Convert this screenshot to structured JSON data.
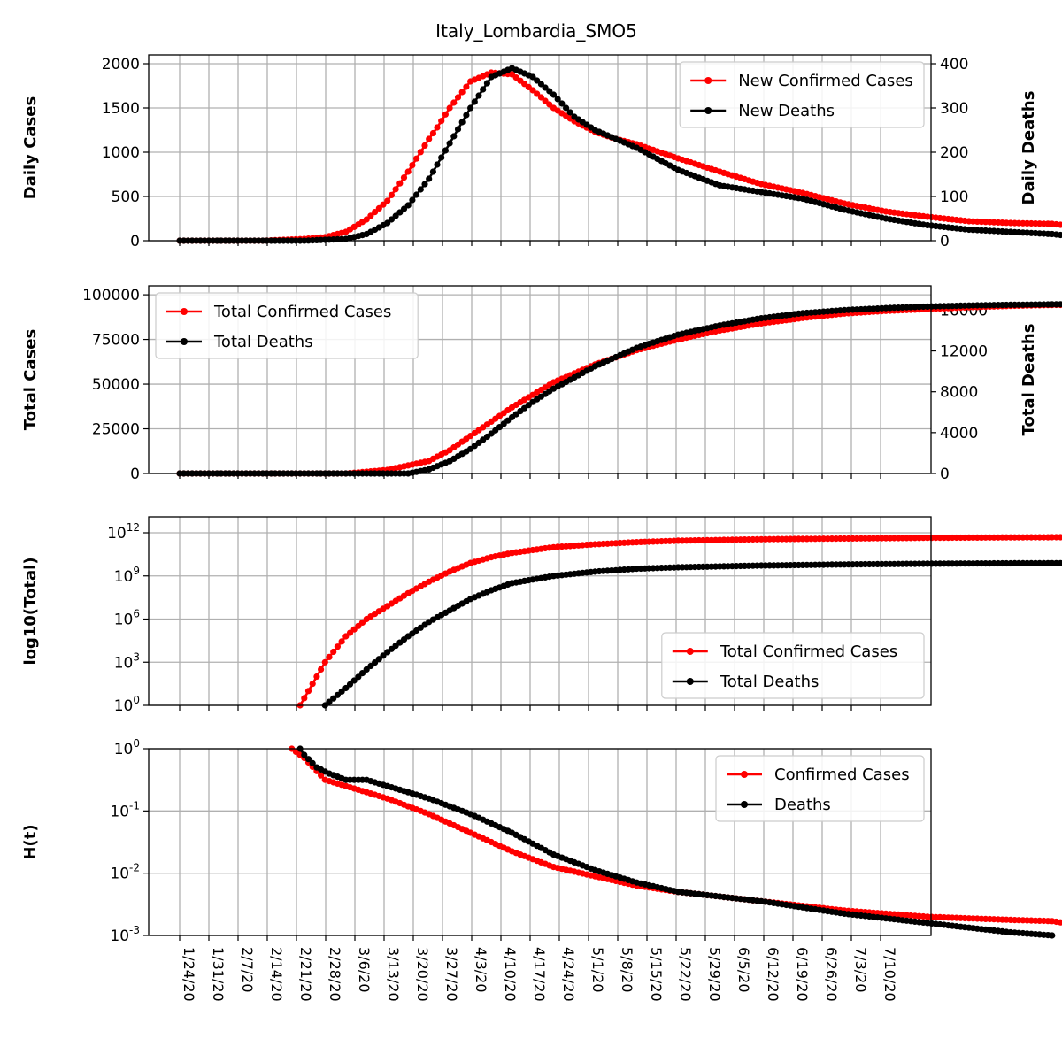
{
  "title": "Italy_Lombardia_SMO5",
  "dates": [
    "1/24/20",
    "1/31/20",
    "2/7/20",
    "2/14/20",
    "2/21/20",
    "2/28/20",
    "3/6/20",
    "3/13/20",
    "3/20/20",
    "3/27/20",
    "4/3/20",
    "4/10/20",
    "4/17/20",
    "4/24/20",
    "5/1/20",
    "5/8/20",
    "5/15/20",
    "5/22/20",
    "5/29/20",
    "6/5/20",
    "6/12/20",
    "6/19/20",
    "6/26/20",
    "7/3/20",
    "7/10/20"
  ],
  "colors": {
    "cases": "#ff0000",
    "deaths": "#000000",
    "grid": "#b0b0b0"
  },
  "chart_data": [
    {
      "type": "line",
      "ylabel": "Daily Cases",
      "ylabel_right": "Daily Deaths",
      "yticks": [
        "0",
        "500",
        "1000",
        "1500",
        "2000"
      ],
      "yticks_right": [
        "0",
        "100",
        "200",
        "300",
        "400"
      ],
      "ylim": [
        0,
        2100
      ],
      "ylim_right": [
        0,
        420
      ],
      "legend": "top-right",
      "grid": true,
      "series": [
        {
          "name": "New Confirmed Cases",
          "axis": "left",
          "color": "#ff0000",
          "days": [
            0,
            20,
            25,
            30,
            35,
            40,
            45,
            50,
            55,
            60,
            62,
            65,
            70,
            75,
            80,
            85,
            90,
            95,
            100,
            105,
            110,
            120,
            130,
            140,
            150,
            160,
            170,
            180,
            190,
            200,
            210,
            220,
            230,
            240
          ],
          "values": [
            0,
            0,
            10,
            20,
            40,
            100,
            240,
            450,
            780,
            1150,
            1280,
            1500,
            1800,
            1900,
            1880,
            1700,
            1500,
            1350,
            1230,
            1150,
            1090,
            930,
            780,
            640,
            540,
            420,
            330,
            270,
            220,
            200,
            190,
            140,
            100,
            90
          ]
        },
        {
          "name": "New Deaths",
          "axis": "right",
          "color": "#000000",
          "days": [
            0,
            30,
            40,
            45,
            50,
            55,
            60,
            65,
            70,
            75,
            80,
            85,
            90,
            95,
            100,
            105,
            110,
            120,
            130,
            140,
            150,
            160,
            170,
            180,
            190,
            200,
            210,
            220,
            230,
            240
          ],
          "values": [
            0,
            0,
            4,
            15,
            40,
            80,
            140,
            220,
            300,
            370,
            390,
            370,
            330,
            280,
            250,
            230,
            210,
            160,
            125,
            110,
            95,
            70,
            50,
            35,
            25,
            20,
            15,
            5,
            5,
            5
          ]
        }
      ]
    },
    {
      "type": "line",
      "ylabel": "Total Cases",
      "ylabel_right": "Total Deaths",
      "yticks": [
        "0",
        "25000",
        "50000",
        "75000",
        "100000"
      ],
      "yticks_right": [
        "0",
        "4000",
        "8000",
        "12000",
        "16000"
      ],
      "ylim": [
        0,
        105000
      ],
      "ylim_right": [
        0,
        18375
      ],
      "legend": "top-left",
      "grid": true,
      "series": [
        {
          "name": "Total Confirmed Cases",
          "axis": "left",
          "color": "#ff0000",
          "days": [
            0,
            40,
            50,
            60,
            65,
            70,
            75,
            80,
            85,
            90,
            100,
            110,
            120,
            130,
            140,
            150,
            160,
            170,
            180,
            190,
            200,
            210,
            220,
            230,
            240
          ],
          "values": [
            0,
            0,
            2000,
            7000,
            13000,
            21000,
            29000,
            37000,
            44000,
            51000,
            61000,
            69000,
            75000,
            80000,
            84000,
            87000,
            89500,
            91000,
            92000,
            93000,
            93800,
            94300,
            94600,
            94800,
            95000
          ]
        },
        {
          "name": "Total Deaths",
          "axis": "right",
          "color": "#000000",
          "days": [
            0,
            55,
            60,
            65,
            70,
            75,
            80,
            85,
            90,
            100,
            110,
            120,
            130,
            140,
            150,
            160,
            170,
            180,
            190,
            200,
            210,
            220,
            230,
            240
          ],
          "values": [
            0,
            0,
            400,
            1200,
            2400,
            3900,
            5500,
            7000,
            8300,
            10500,
            12300,
            13600,
            14500,
            15200,
            15700,
            16000,
            16200,
            16350,
            16450,
            16520,
            16560,
            16600,
            16620,
            16640
          ]
        }
      ]
    },
    {
      "type": "line",
      "ylabel": "log10(Total)",
      "yscale": "log",
      "yticks": [
        "10^0",
        "10^3",
        "10^6",
        "10^9",
        "10^12"
      ],
      "ylim": [
        0,
        12.0
      ],
      "legend": "bottom-right",
      "grid": true,
      "series": [
        {
          "name": "Total Confirmed Cases",
          "color": "#ff0000",
          "days": [
            29,
            35,
            40,
            45,
            50,
            55,
            60,
            65,
            70,
            75,
            80,
            90,
            100,
            110,
            120,
            140,
            160,
            180,
            200,
            220,
            240
          ],
          "values_log10": [
            0,
            3,
            4.8,
            6,
            6.9,
            7.8,
            8.6,
            9.3,
            9.9,
            10.3,
            10.6,
            11.0,
            11.2,
            11.35,
            11.45,
            11.55,
            11.6,
            11.65,
            11.68,
            11.7,
            11.72
          ]
        },
        {
          "name": "Total Deaths",
          "color": "#000000",
          "days": [
            35,
            40,
            45,
            50,
            55,
            60,
            65,
            70,
            75,
            80,
            90,
            100,
            110,
            120,
            140,
            160,
            180,
            200,
            220,
            240
          ],
          "values_log10": [
            0,
            1.2,
            2.5,
            3.7,
            4.8,
            5.8,
            6.6,
            7.4,
            8.0,
            8.5,
            9.0,
            9.3,
            9.5,
            9.6,
            9.72,
            9.8,
            9.85,
            9.88,
            9.9,
            9.92
          ]
        }
      ]
    },
    {
      "type": "line",
      "ylabel": "H(t)",
      "yscale": "log",
      "yticks": [
        "10^-3",
        "10^-2",
        "10^-1",
        "10^0"
      ],
      "ylim": [
        -3,
        0
      ],
      "legend": "top-right",
      "grid": true,
      "series": [
        {
          "name": "Confirmed Cases",
          "color": "#ff0000",
          "days": [
            27,
            30,
            35,
            40,
            50,
            60,
            70,
            80,
            90,
            100,
            110,
            120,
            140,
            160,
            180,
            200,
            210,
            215,
            220,
            225,
            230,
            236
          ],
          "values_log10": [
            0,
            -0.15,
            -0.5,
            -0.6,
            -0.8,
            -1.05,
            -1.35,
            -1.65,
            -1.9,
            -2.05,
            -2.2,
            -2.3,
            -2.45,
            -2.6,
            -2.7,
            -2.75,
            -2.77,
            -2.82,
            -2.9,
            -2.95,
            -2.98,
            -3.0
          ]
        },
        {
          "name": "Deaths",
          "color": "#000000",
          "days": [
            29,
            30,
            33,
            36,
            40,
            45,
            50,
            60,
            70,
            80,
            90,
            100,
            110,
            120,
            140,
            160,
            180,
            200,
            210
          ],
          "values_log10": [
            0,
            -0.1,
            -0.3,
            -0.4,
            -0.5,
            -0.5,
            -0.6,
            -0.8,
            -1.05,
            -1.35,
            -1.7,
            -1.95,
            -2.15,
            -2.3,
            -2.45,
            -2.65,
            -2.8,
            -2.95,
            -3.0
          ]
        }
      ]
    }
  ]
}
